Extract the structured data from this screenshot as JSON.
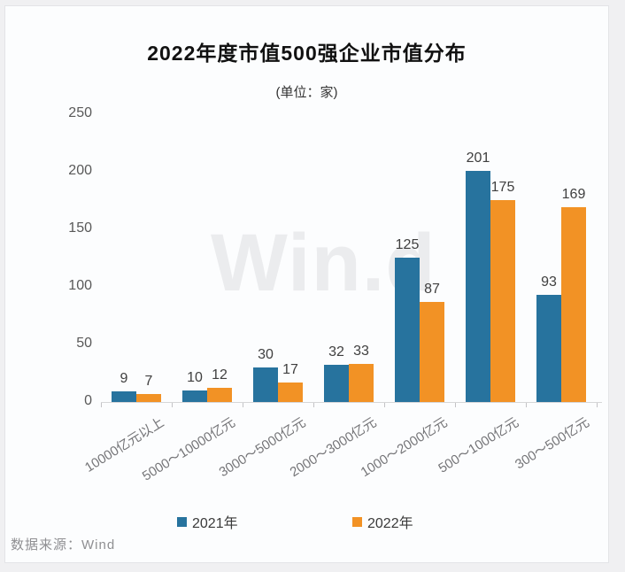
{
  "title": "2022年度市值500强企业市值分布",
  "subtitle": "(单位：家)",
  "watermark_text": "Win.d",
  "source_text": "数据来源：Wind",
  "chart_data": {
    "type": "bar",
    "title": "2022年度市值500强企业市值分布",
    "unit_label": "(单位：家)",
    "categories": [
      "10000亿元以上",
      "5000～10000亿元",
      "3000～5000亿元",
      "2000～3000亿元",
      "1000～2000亿元",
      "500～1000亿元",
      "300～500亿元"
    ],
    "series": [
      {
        "name": "2021年",
        "color": "#27739E",
        "values": [
          9,
          10,
          30,
          32,
          125,
          201,
          93
        ]
      },
      {
        "name": "2022年",
        "color": "#F29225",
        "values": [
          7,
          12,
          17,
          33,
          87,
          175,
          169
        ]
      }
    ],
    "ylim": [
      0,
      250
    ],
    "yticks": [
      0,
      50,
      100,
      150,
      200,
      250
    ],
    "grid": false,
    "legend_position": "bottom",
    "value_labels": true
  }
}
